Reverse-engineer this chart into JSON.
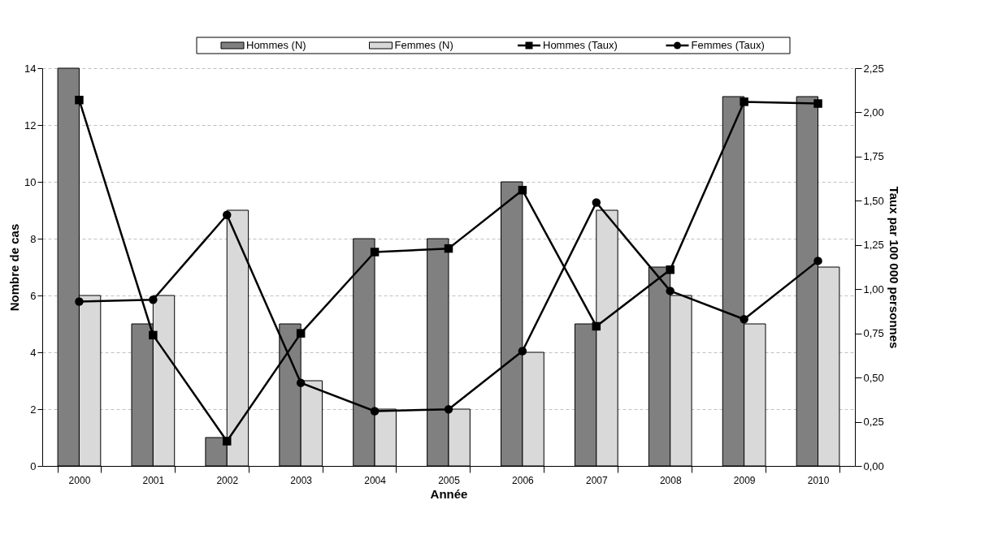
{
  "chart_data": {
    "type": "bar",
    "xlabel": "Année",
    "ylabel": "Nombre de cas",
    "y2label": "Taux par 100 000 personnes",
    "categories": [
      "2000",
      "2001",
      "2002",
      "2003",
      "2004",
      "2005",
      "2006",
      "2007",
      "2008",
      "2009",
      "2010"
    ],
    "series": [
      {
        "name": "Hommes (N)",
        "color": "#808080",
        "values": [
          14,
          5,
          1,
          5,
          8,
          8,
          10,
          5,
          7,
          13,
          13
        ]
      },
      {
        "name": "Femmes (N)",
        "color": "#d9d9d9",
        "values": [
          6,
          6,
          9,
          3,
          2,
          2,
          4,
          9,
          6,
          5,
          7
        ]
      },
      {
        "name": "Hommes (Taux)",
        "type": "line",
        "axis": "y2",
        "marker": "square",
        "color": "#000000",
        "values": [
          2.07,
          0.74,
          0.14,
          0.75,
          1.21,
          1.23,
          1.56,
          0.79,
          1.11,
          2.06,
          2.05
        ]
      },
      {
        "name": "Femmes (Taux)",
        "type": "line",
        "axis": "y2",
        "marker": "circle",
        "color": "#000000",
        "values": [
          0.93,
          0.94,
          1.42,
          0.47,
          0.31,
          0.32,
          0.65,
          1.49,
          0.99,
          0.83,
          1.16
        ]
      }
    ],
    "ylim": [
      0,
      14
    ],
    "yticks": [
      0,
      2,
      4,
      6,
      8,
      10,
      12,
      14
    ],
    "y2lim": [
      0,
      2.25
    ],
    "y2ticks": [
      {
        "value": 0,
        "label": "0,00"
      },
      {
        "value": 0.25,
        "label": "0,25"
      },
      {
        "value": 0.5,
        "label": "0,50"
      },
      {
        "value": 0.75,
        "label": "0,75"
      },
      {
        "value": 1,
        "label": "1,00"
      },
      {
        "value": 1.25,
        "label": "1,25"
      },
      {
        "value": 1.5,
        "label": "1,50"
      },
      {
        "value": 1.75,
        "label": "1,75"
      },
      {
        "value": 2,
        "label": "2,00"
      },
      {
        "value": 2.25,
        "label": "2,25"
      }
    ],
    "grid": "y",
    "legend": "top"
  }
}
